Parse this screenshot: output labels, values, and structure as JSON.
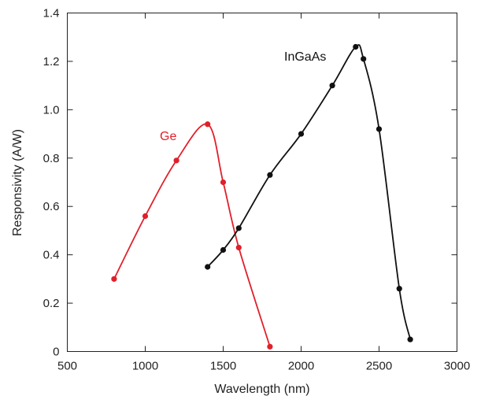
{
  "chart_data": {
    "type": "line",
    "xlabel": "Wavelength (nm)",
    "ylabel": "Responsivity (A/W)",
    "xlim": [
      500,
      3000
    ],
    "ylim": [
      0,
      1.4
    ],
    "x_ticks": [
      500,
      1000,
      1500,
      2000,
      2500,
      3000
    ],
    "y_ticks": [
      0,
      0.2,
      0.4,
      0.6,
      0.8,
      1.0,
      1.2,
      1.4
    ],
    "y_tick_labels": [
      "0",
      "0.2",
      "0.4",
      "0.6",
      "0.8",
      "1.0",
      "1.2",
      "1.4"
    ],
    "grid": false,
    "series": [
      {
        "name": "Ge",
        "color": "#e0202a",
        "points": [
          [
            800,
            0.3
          ],
          [
            1000,
            0.56
          ],
          [
            1200,
            0.79
          ],
          [
            1400,
            0.94
          ],
          [
            1500,
            0.7
          ],
          [
            1600,
            0.43
          ],
          [
            1800,
            0.02
          ]
        ]
      },
      {
        "name": "InGaAs",
        "color": "#111111",
        "points": [
          [
            1400,
            0.35
          ],
          [
            1500,
            0.42
          ],
          [
            1600,
            0.51
          ],
          [
            1800,
            0.73
          ],
          [
            2000,
            0.9
          ],
          [
            2200,
            1.1
          ],
          [
            2350,
            1.26
          ],
          [
            2400,
            1.21
          ],
          [
            2500,
            0.92
          ],
          [
            2630,
            0.26
          ],
          [
            2700,
            0.05
          ]
        ]
      }
    ]
  }
}
